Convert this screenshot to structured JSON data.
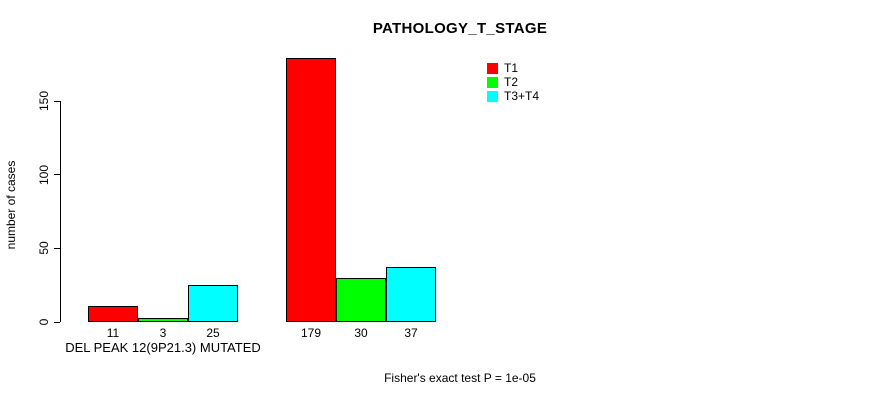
{
  "chart_data": {
    "type": "bar",
    "title": "PATHOLOGY_T_STAGE",
    "xlabel": "",
    "ylabel": "number of cases",
    "ylim": [
      0,
      150
    ],
    "yticks": [
      0,
      50,
      100,
      150
    ],
    "grid": false,
    "legend_position": "top-right-inside",
    "categories": [
      "DEL PEAK 12(9P21.3) MUTATED",
      ""
    ],
    "series": [
      {
        "name": "T1",
        "color": "#ff0000",
        "values": [
          11,
          179
        ]
      },
      {
        "name": "T2",
        "color": "#00ff00",
        "values": [
          3,
          30
        ]
      },
      {
        "name": "T3+T4",
        "color": "#00ffff",
        "values": [
          25,
          37
        ]
      }
    ],
    "bar_value_labels": [
      [
        11,
        3,
        25
      ],
      [
        179,
        30,
        37
      ]
    ],
    "annotation": "Fisher's exact test P = 1e-05"
  },
  "colors": {
    "axis": "#000000",
    "text": "#000000",
    "background": "#ffffff"
  }
}
